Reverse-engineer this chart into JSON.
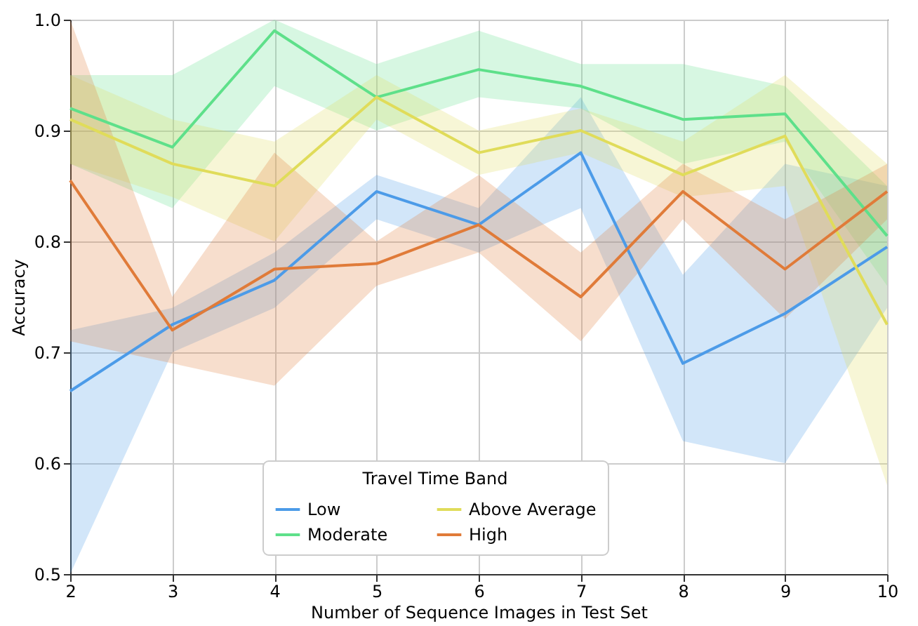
{
  "chart_data": {
    "type": "line",
    "xlabel": "Number of Sequence Images in Test Set",
    "ylabel": "Accuracy",
    "legend_title": "Travel Time Band",
    "legend": "bottom",
    "grid": true,
    "marker": "none",
    "line_style": "solid",
    "x": [
      2,
      3,
      4,
      5,
      6,
      7,
      8,
      9,
      10
    ],
    "xlim": [
      2,
      10
    ],
    "xticks": [
      2,
      3,
      4,
      5,
      6,
      7,
      8,
      9,
      10
    ],
    "ylim": [
      0.5,
      1.0
    ],
    "yticks": [
      0.5,
      0.6,
      0.7,
      0.8,
      0.9,
      {
        "value": 1.0,
        "label": "1.0"
      }
    ],
    "series": [
      {
        "name": "Low",
        "color": "#4c9be8",
        "values": [
          0.665,
          0.725,
          0.765,
          0.845,
          0.815,
          0.88,
          0.69,
          0.735,
          0.795
        ],
        "lower": [
          0.5,
          0.7,
          0.74,
          0.82,
          0.79,
          0.83,
          0.62,
          0.6,
          0.74
        ],
        "upper": [
          0.72,
          0.74,
          0.79,
          0.86,
          0.83,
          0.93,
          0.77,
          0.87,
          0.85
        ]
      },
      {
        "name": "Moderate",
        "color": "#5ee08a",
        "values": [
          0.92,
          0.885,
          0.99,
          0.93,
          0.955,
          0.94,
          0.91,
          0.915,
          0.805
        ],
        "lower": [
          0.87,
          0.83,
          0.94,
          0.9,
          0.93,
          0.92,
          0.87,
          0.89,
          0.76
        ],
        "upper": [
          0.95,
          0.95,
          1.0,
          0.96,
          0.99,
          0.96,
          0.96,
          0.94,
          0.85
        ]
      },
      {
        "name": "Above Average",
        "color": "#e0dc5a",
        "values": [
          0.91,
          0.87,
          0.85,
          0.93,
          0.88,
          0.9,
          0.86,
          0.895,
          0.725
        ],
        "lower": [
          0.87,
          0.84,
          0.8,
          0.91,
          0.86,
          0.88,
          0.84,
          0.85,
          0.58
        ],
        "upper": [
          0.95,
          0.91,
          0.89,
          0.95,
          0.9,
          0.92,
          0.89,
          0.95,
          0.87
        ]
      },
      {
        "name": "High",
        "color": "#e07b39",
        "values": [
          0.855,
          0.72,
          0.775,
          0.78,
          0.815,
          0.75,
          0.845,
          0.775,
          0.845
        ],
        "lower": [
          0.71,
          0.69,
          0.67,
          0.76,
          0.79,
          0.71,
          0.82,
          0.73,
          0.82
        ],
        "upper": [
          1.0,
          0.75,
          0.88,
          0.8,
          0.86,
          0.79,
          0.87,
          0.82,
          0.87
        ]
      }
    ]
  }
}
